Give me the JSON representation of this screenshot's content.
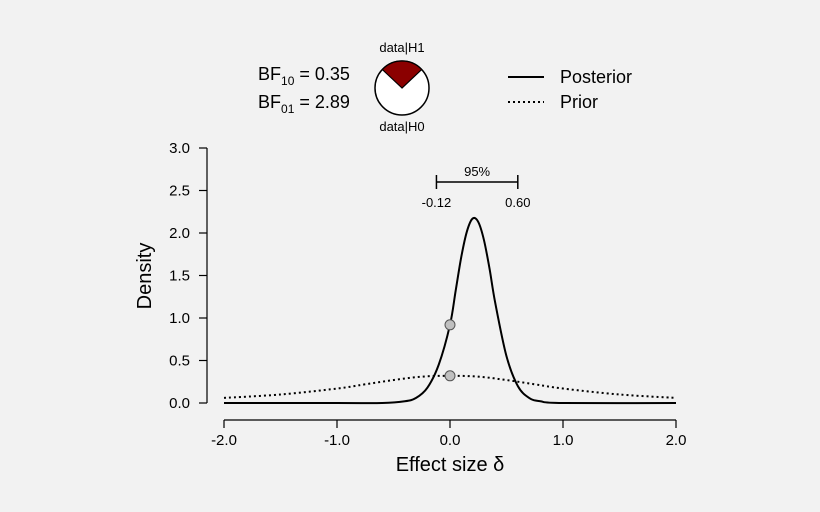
{
  "chart_data": {
    "type": "line",
    "xlabel": "Effect size δ",
    "ylabel": "Density",
    "xlim": [
      -2.0,
      2.0
    ],
    "ylim": [
      0,
      3.0
    ],
    "xticks": [
      "-2.0",
      "-1.0",
      "0.0",
      "1.0",
      "2.0"
    ],
    "yticks": [
      "0.0",
      "0.5",
      "1.0",
      "1.5",
      "2.0",
      "2.5",
      "3.0"
    ],
    "grid": false,
    "legend_position": "top-right",
    "series": [
      {
        "name": "Posterior",
        "style": "solid",
        "x": [
          -2.0,
          -1.0,
          -0.6,
          -0.4,
          -0.3,
          -0.2,
          -0.1,
          0.0,
          0.05,
          0.1,
          0.15,
          0.2,
          0.25,
          0.3,
          0.35,
          0.4,
          0.5,
          0.6,
          0.7,
          0.8,
          1.0,
          2.0
        ],
        "y": [
          0.0,
          0.0,
          0.0,
          0.02,
          0.06,
          0.18,
          0.45,
          0.92,
          1.32,
          1.72,
          2.02,
          2.17,
          2.13,
          1.92,
          1.58,
          1.18,
          0.55,
          0.2,
          0.06,
          0.02,
          0.0,
          0.0
        ]
      },
      {
        "name": "Prior",
        "style": "dotted",
        "x": [
          -2.0,
          -1.5,
          -1.0,
          -0.75,
          -0.5,
          -0.25,
          0.0,
          0.25,
          0.5,
          0.75,
          1.0,
          1.5,
          2.0
        ],
        "y": [
          0.06,
          0.1,
          0.17,
          0.22,
          0.27,
          0.31,
          0.32,
          0.31,
          0.27,
          0.22,
          0.17,
          0.1,
          0.06
        ]
      }
    ],
    "points": [
      {
        "x": 0.0,
        "y": 0.92,
        "label": "posterior density at 0"
      },
      {
        "x": 0.0,
        "y": 0.32,
        "label": "prior density at 0"
      }
    ],
    "credible_interval": {
      "label": "95%",
      "lower": -0.12,
      "upper": 0.6,
      "lower_text": "-0.12",
      "upper_text": "0.60",
      "y": 2.6
    },
    "bayes_factors": {
      "bf10_label": "BF",
      "bf10_sub": "10",
      "bf10_value": " = 0.35",
      "bf01_label": "BF",
      "bf01_sub": "01",
      "bf01_value": " = 2.89",
      "bf10": 0.35,
      "bf01": 2.89
    },
    "pie": {
      "top_label": "data|H1",
      "bottom_label": "data|H0",
      "h1_fraction": 0.26,
      "h1_color": "#8b0000",
      "h0_color": "#ffffff"
    },
    "colors": {
      "background": "#f2f2f2",
      "line": "#000000",
      "point_fill": "#c0c0c0"
    }
  }
}
